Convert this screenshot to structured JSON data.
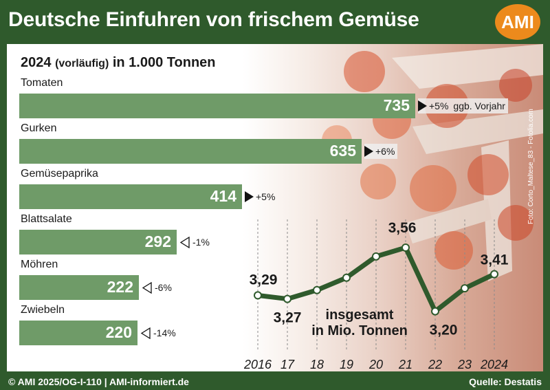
{
  "title": "Deutsche Einfuhren von frischem Gemüse",
  "logo": "AMI",
  "photo_credit": "Foto: Corto_Maltese_83 - Fotolia.com",
  "subtitle_year": "2024",
  "subtitle_note": "(vorläufig)",
  "subtitle_unit": "in 1.000 Tonnen",
  "footer_left": "© AMI 2025/OG-I-110 | AMI-informiert.de",
  "footer_right": "Quelle: Destatis",
  "colors": {
    "bar": "#6f9b68",
    "header": "#2f5a2c",
    "line": "#2f5a2c",
    "logo": "#ec8a1c"
  },
  "chart_data": [
    {
      "type": "bar",
      "orientation": "horizontal",
      "categories": [
        "Tomaten",
        "Gurken",
        "Gemüsepaprika",
        "Blattsalate",
        "Möhren",
        "Zwiebeln"
      ],
      "values": [
        735,
        635,
        414,
        292,
        222,
        220
      ],
      "value_labels": [
        "735",
        "635",
        "414",
        "292",
        "222",
        "220"
      ],
      "changes": [
        "+5%",
        "+6%",
        "+5%",
        "-1%",
        "-6%",
        "-14%"
      ],
      "change_direction": [
        "up",
        "up",
        "up",
        "down",
        "down",
        "down"
      ],
      "change_suffix": "ggb. Vorjahr",
      "xlim": [
        0,
        735
      ]
    },
    {
      "type": "line",
      "x": [
        "2016",
        "17",
        "18",
        "19",
        "20",
        "21",
        "22",
        "23",
        "2024"
      ],
      "values": [
        3.29,
        3.27,
        3.32,
        3.39,
        3.51,
        3.56,
        3.2,
        3.33,
        3.41
      ],
      "point_labels": [
        {
          "index": 0,
          "text": "3,29"
        },
        {
          "index": 1,
          "text": "3,27"
        },
        {
          "index": 5,
          "text": "3,56"
        },
        {
          "index": 6,
          "text": "3,20"
        },
        {
          "index": 8,
          "text": "3,41"
        }
      ],
      "caption_line1": "insgesamt",
      "caption_line2": "in Mio. Tonnen",
      "ylim": [
        3.0,
        3.7
      ],
      "grid": "vertical dashed"
    }
  ]
}
